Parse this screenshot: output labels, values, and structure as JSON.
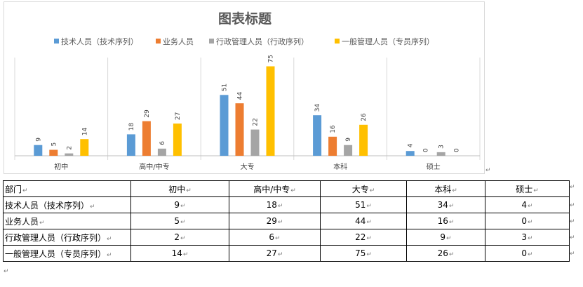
{
  "chart_data": {
    "type": "bar",
    "title": "图表标题",
    "categories": [
      "初中",
      "高中/中专",
      "大专",
      "本科",
      "硕士"
    ],
    "series": [
      {
        "name": "技术人员（技术序列）",
        "color": "#5B9BD5",
        "values": [
          9,
          18,
          51,
          34,
          4
        ]
      },
      {
        "name": "业务人员",
        "color": "#ED7D31",
        "values": [
          5,
          29,
          44,
          16,
          0
        ]
      },
      {
        "name": "行政管理人员（行政序列）",
        "color": "#A5A5A5",
        "values": [
          2,
          6,
          22,
          9,
          3
        ]
      },
      {
        "name": "一般管理人员（专员序列）",
        "color": "#FFC000",
        "values": [
          14,
          27,
          75,
          26,
          0
        ]
      }
    ],
    "ylim": [
      0,
      80
    ],
    "legend_position": "top",
    "grid": false,
    "value_labels": "rotated"
  },
  "table": {
    "header": [
      "部门",
      "初中",
      "高中/中专",
      "大专",
      "本科",
      "硕士"
    ],
    "rows": [
      [
        "技术人员（技术序列）",
        "9",
        "18",
        "51",
        "34",
        "4"
      ],
      [
        "业务人员",
        "5",
        "29",
        "44",
        "16",
        "0"
      ],
      [
        "行政管理人员（行政序列）",
        "2",
        "6",
        "22",
        "9",
        "3"
      ],
      [
        "一般管理人员（专员序列）",
        "14",
        "27",
        "75",
        "26",
        "0"
      ]
    ]
  },
  "paragraph_mark": "↵"
}
